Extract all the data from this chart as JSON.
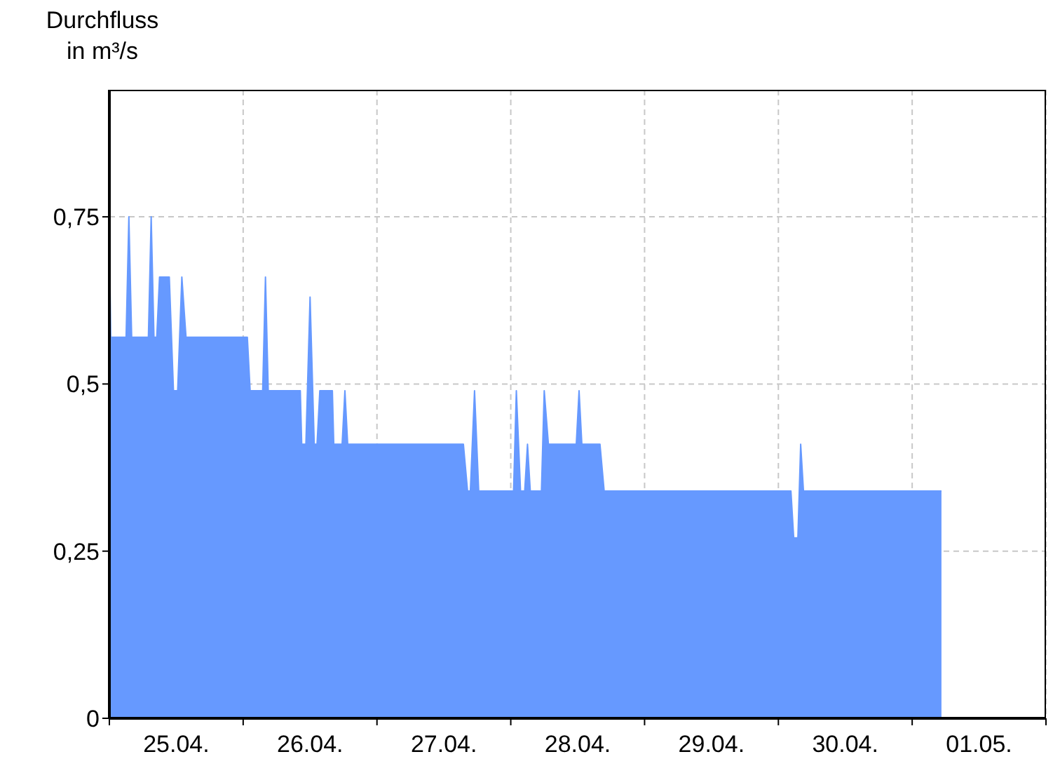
{
  "chart_data": {
    "type": "area",
    "ylabel": "Durchfluss in m³/s",
    "x": [
      "--04-25T00:00",
      "--04-25T00:15",
      "--04-25T03:00",
      "--04-25T03:30",
      "--04-25T04:00",
      "--04-25T07:00",
      "--04-25T07:30",
      "--04-25T08:00",
      "--04-25T08:30",
      "--04-25T09:00",
      "--04-25T10:45",
      "--04-25T11:30",
      "--04-25T12:15",
      "--04-25T13:00",
      "--04-25T13:45",
      "--04-26T00:45",
      "--04-26T01:15",
      "--04-26T03:30",
      "--04-26T04:00",
      "--04-26T04:30",
      "--04-26T10:15",
      "--04-26T10:30",
      "--04-26T11:15",
      "--04-26T12:00",
      "--04-26T12:45",
      "--04-26T13:15",
      "--04-26T13:45",
      "--04-26T16:00",
      "--04-26T16:15",
      "--04-26T17:45",
      "--04-26T18:15",
      "--04-26T18:45",
      "--04-27T15:30",
      "--04-27T16:15",
      "--04-27T16:45",
      "--04-27T17:30",
      "--04-27T18:15",
      "--04-28T00:30",
      "--04-28T01:00",
      "--04-28T01:45",
      "--04-28T02:30",
      "--04-28T03:00",
      "--04-28T03:30",
      "--04-28T05:30",
      "--04-28T06:00",
      "--04-28T06:45",
      "--04-28T11:00",
      "--04-28T11:45",
      "--04-28T12:15",
      "--04-28T12:45",
      "--04-28T16:00",
      "--04-28T16:45",
      "--04-30T02:15",
      "--04-30T02:45",
      "--04-30T03:30",
      "--04-30T04:00",
      "--04-30T04:30",
      "--05-01T05:15"
    ],
    "series": [
      {
        "color": "#6699ff",
        "values": [
          0.72,
          0.57,
          0.57,
          0.75,
          0.57,
          0.57,
          0.75,
          0.57,
          0.57,
          0.66,
          0.66,
          0.49,
          0.49,
          0.66,
          0.57,
          0.57,
          0.49,
          0.49,
          0.66,
          0.49,
          0.49,
          0.41,
          0.41,
          0.63,
          0.41,
          0.41,
          0.49,
          0.49,
          0.41,
          0.41,
          0.49,
          0.41,
          0.41,
          0.34,
          0.34,
          0.49,
          0.34,
          0.34,
          0.49,
          0.34,
          0.34,
          0.41,
          0.34,
          0.34,
          0.49,
          0.41,
          0.41,
          0.41,
          0.49,
          0.41,
          0.41,
          0.34,
          0.34,
          0.27,
          0.27,
          0.41,
          0.34,
          0.34
        ]
      }
    ],
    "xlim": [
      "--04-25T00:00",
      "--05-02T00:00"
    ],
    "xticks": [
      {
        "value": "--04-25T00:00",
        "label": null
      },
      {
        "value": "--04-25T12:00",
        "label": "25.04."
      },
      {
        "value": "--04-26T00:00",
        "label": null
      },
      {
        "value": "--04-26T12:00",
        "label": "26.04."
      },
      {
        "value": "--04-27T00:00",
        "label": null
      },
      {
        "value": "--04-27T12:00",
        "label": "27.04."
      },
      {
        "value": "--04-28T00:00",
        "label": null
      },
      {
        "value": "--04-28T12:00",
        "label": "28.04."
      },
      {
        "value": "--04-29T00:00",
        "label": null
      },
      {
        "value": "--04-29T12:00",
        "label": "29.04."
      },
      {
        "value": "--04-30T00:00",
        "label": null
      },
      {
        "value": "--04-30T12:00",
        "label": "30.04."
      },
      {
        "value": "--05-01T00:00",
        "label": null
      },
      {
        "value": "--05-01T12:00",
        "label": "01.05."
      },
      {
        "value": "--05-02T00:00",
        "label": null
      }
    ],
    "ylim": [
      0,
      0.94
    ],
    "yticks": [
      {
        "value": 0,
        "label": "0"
      },
      {
        "value": 0.25,
        "label": "0,25"
      },
      {
        "value": 0.5,
        "label": "0,5"
      },
      {
        "value": 0.75,
        "label": "0,75"
      }
    ],
    "grid": true
  }
}
